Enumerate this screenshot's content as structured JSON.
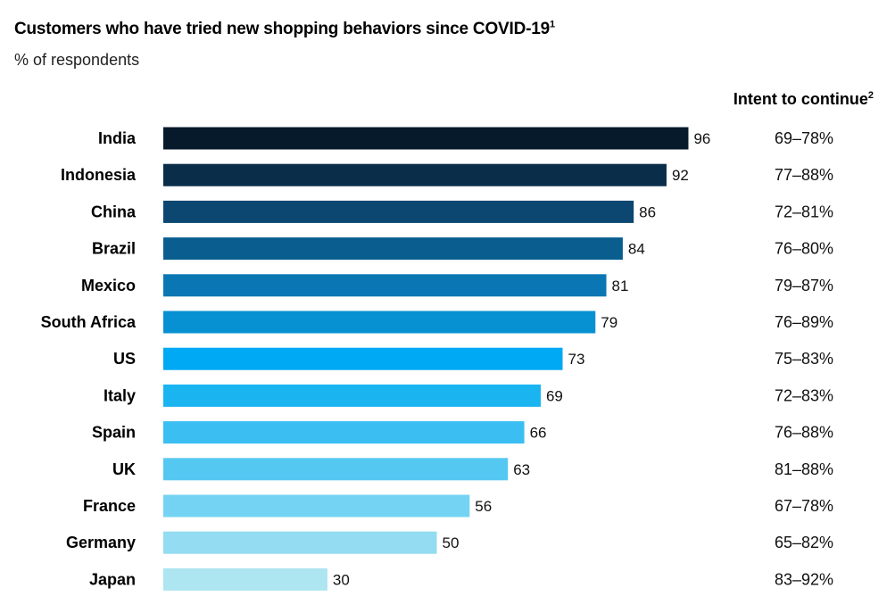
{
  "chart_data": {
    "type": "bar",
    "orientation": "horizontal",
    "title": "Customers who have tried new shopping behaviors since COVID-19",
    "title_footnote": "1",
    "subtitle": "% of respondents",
    "intent_header": "Intent to continue",
    "intent_footnote": "2",
    "categories": [
      "India",
      "Indonesia",
      "China",
      "Brazil",
      "Mexico",
      "South Africa",
      "US",
      "Italy",
      "Spain",
      "UK",
      "France",
      "Germany",
      "Japan"
    ],
    "values": [
      96,
      92,
      86,
      84,
      81,
      79,
      73,
      69,
      66,
      63,
      56,
      50,
      30
    ],
    "intent_to_continue": [
      "69–78%",
      "77–88%",
      "72–81%",
      "76–80%",
      "79–87%",
      "76–89%",
      "75–83%",
      "72–83%",
      "76–88%",
      "81–88%",
      "67–78%",
      "65–82%",
      "83–92%"
    ],
    "colors": [
      "#061a2b",
      "#0a2e4a",
      "#0b4770",
      "#0a5e8f",
      "#0a77b4",
      "#0891d2",
      "#00a9f4",
      "#1ab4f0",
      "#3bbff2",
      "#55c8f1",
      "#74d3f2",
      "#93dcf1",
      "#ade5f1"
    ],
    "xlim": [
      0,
      100
    ],
    "grid": false,
    "legend": "none"
  }
}
